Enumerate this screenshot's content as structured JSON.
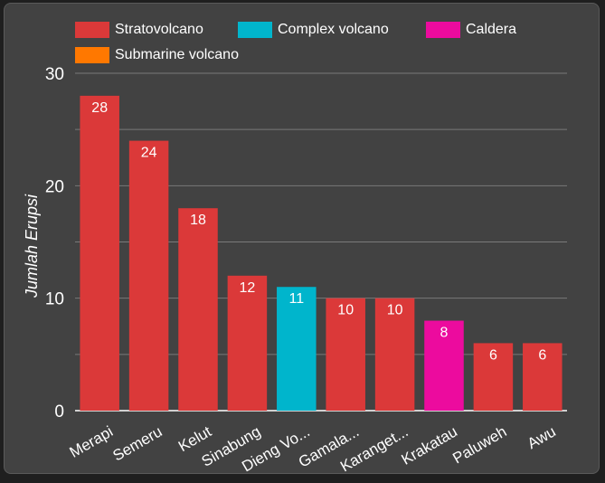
{
  "chart_data": {
    "type": "bar",
    "title": "",
    "xlabel": "",
    "ylabel": "Jumlah Erupsi",
    "ylim": [
      0,
      30
    ],
    "yticks": [
      0,
      10,
      20,
      30
    ],
    "grid": true,
    "legend_position": "top-left",
    "legend": [
      {
        "label": "Stratovolcano",
        "color": "#db3939"
      },
      {
        "label": "Complex volcano",
        "color": "#00b5cc"
      },
      {
        "label": "Caldera",
        "color": "#ec0b9e"
      },
      {
        "label": "Submarine volcano",
        "color": "#ff7800"
      }
    ],
    "categories": [
      "Merapi",
      "Semeru",
      "Kelut",
      "Sinabung",
      "Dieng Vo...",
      "Gamala...",
      "Karanget...",
      "Krakatau",
      "Paluweh",
      "Awu"
    ],
    "values": [
      28,
      24,
      18,
      12,
      11,
      10,
      10,
      8,
      6,
      6
    ],
    "types": [
      "Stratovolcano",
      "Stratovolcano",
      "Stratovolcano",
      "Stratovolcano",
      "Complex volcano",
      "Stratovolcano",
      "Stratovolcano",
      "Caldera",
      "Stratovolcano",
      "Stratovolcano"
    ]
  }
}
